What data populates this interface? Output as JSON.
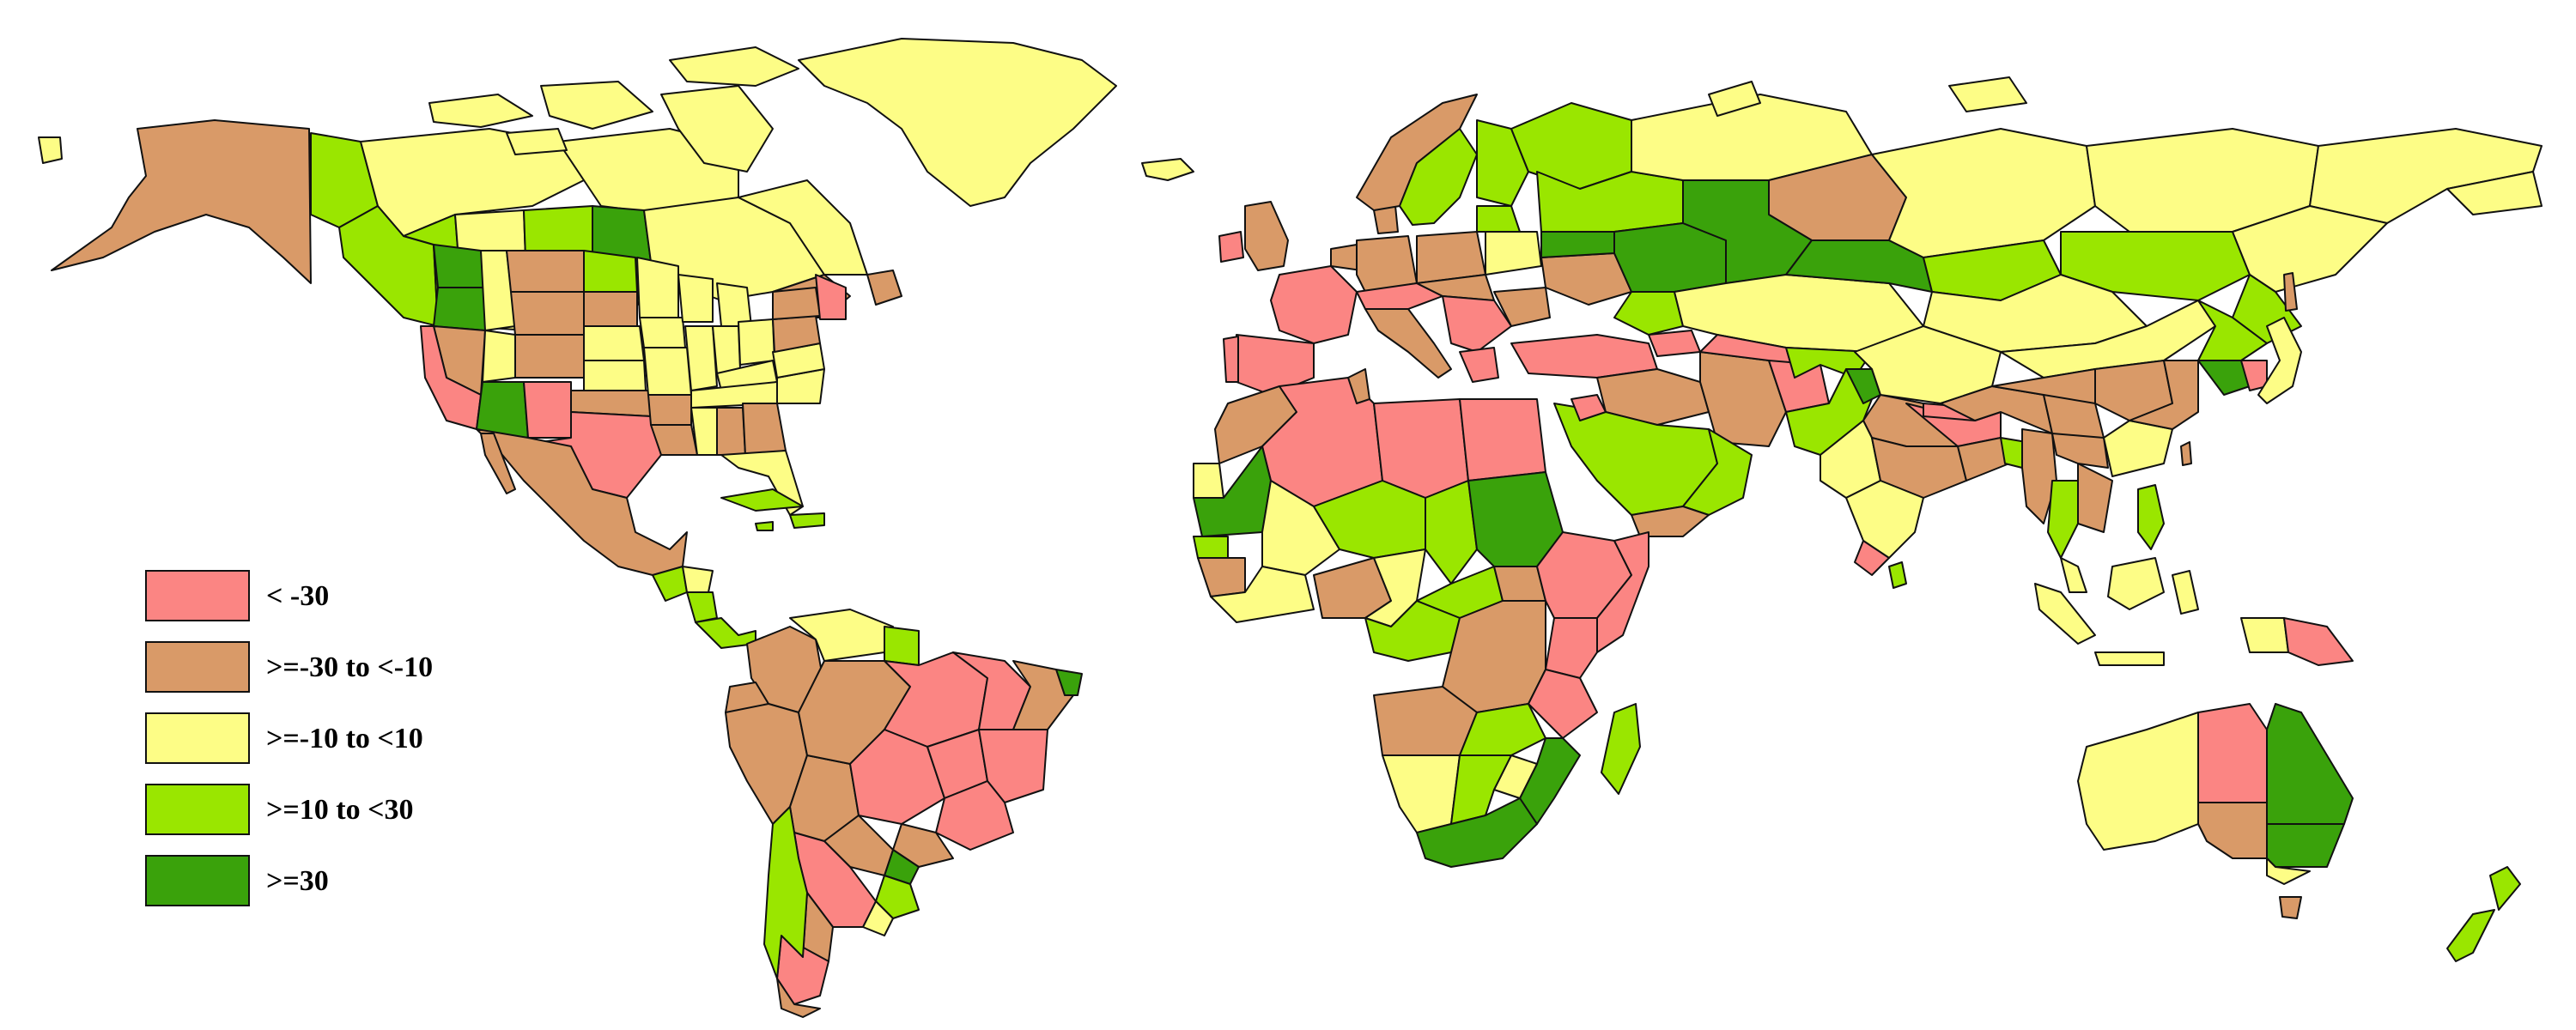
{
  "palette": {
    "lt_neg30": "#fb8583",
    "neg30_neg10": "#d99a68",
    "neg10_10": "#fdfd86",
    "p10_30": "#9ae600",
    "ge30": "#3aa20b",
    "ocean": "#ffffff"
  },
  "legend": {
    "items": [
      {
        "key": "lt_neg30",
        "label": "< -30"
      },
      {
        "key": "neg30_neg10",
        "label": ">=-30 to <-10"
      },
      {
        "key": "neg10_10",
        "label": ">=-10 to <10"
      },
      {
        "key": "p10_30",
        "label": ">=10 to <30"
      },
      {
        "key": "ge30",
        "label": ">=30"
      }
    ]
  }
}
